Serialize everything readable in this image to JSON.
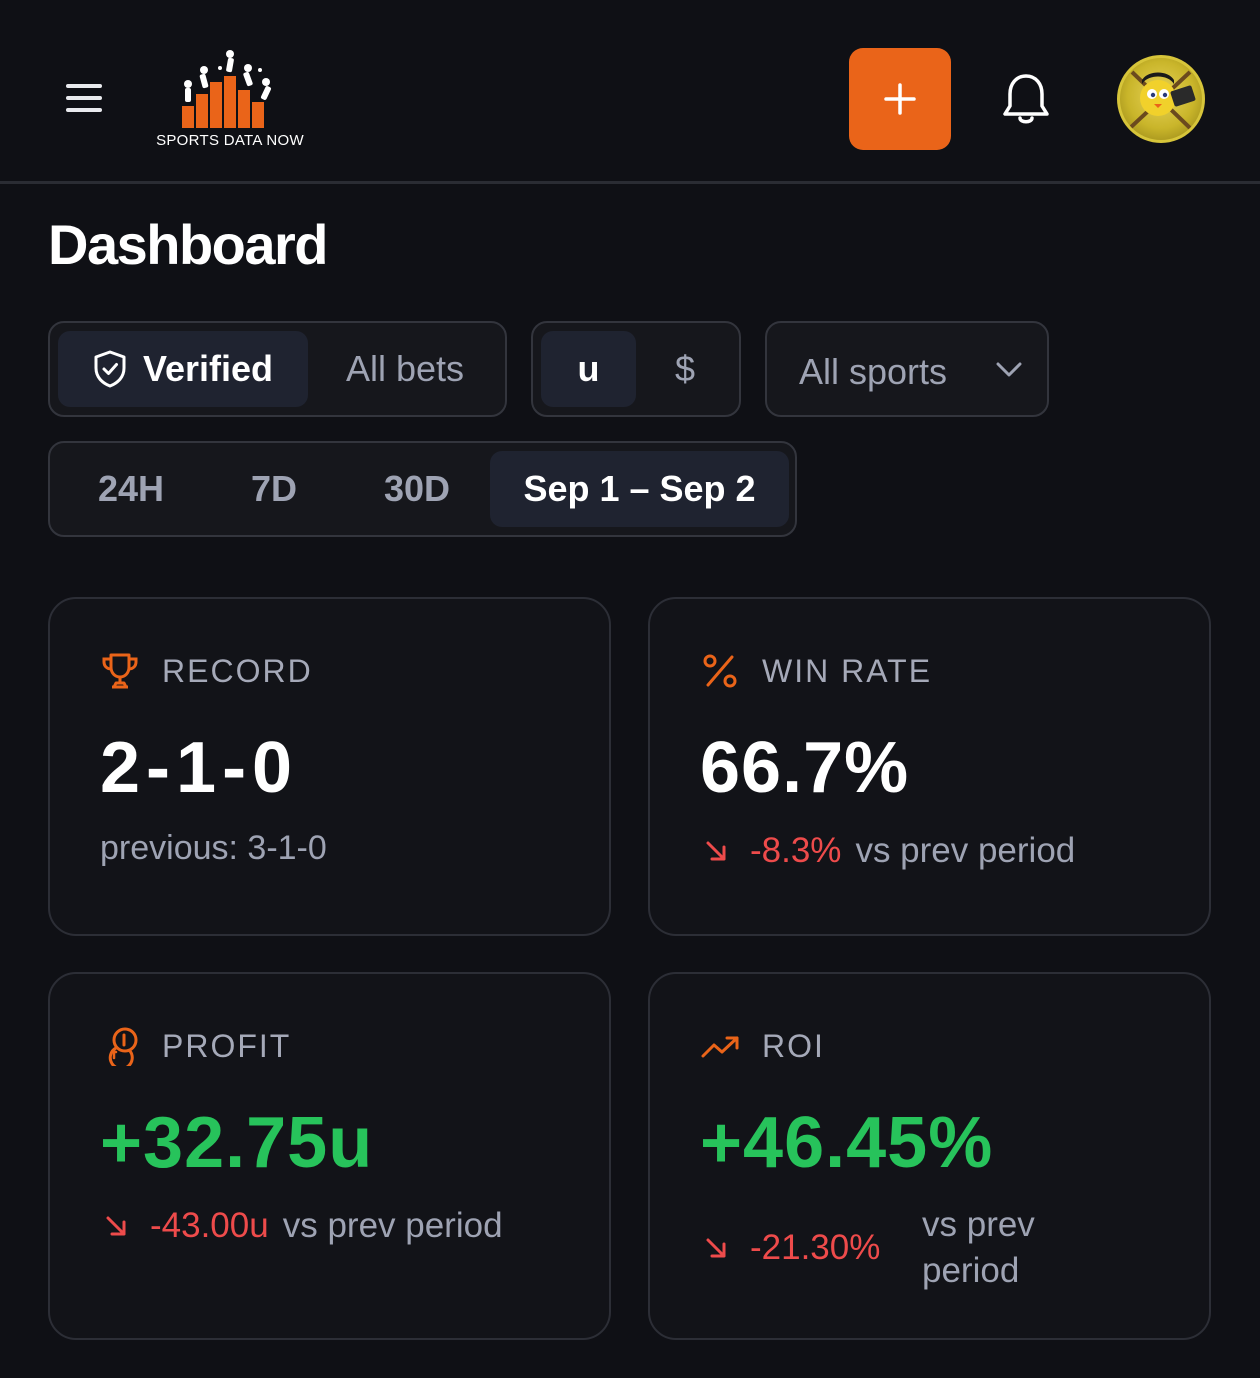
{
  "header": {
    "logo_text": "SPORTS DATA NOW",
    "icons": {
      "menu": "hamburger-icon",
      "add": "plus-icon",
      "bell": "bell-icon"
    },
    "accent": "#ea6419"
  },
  "page": {
    "title": "Dashboard"
  },
  "filters": {
    "bet_type": {
      "options": [
        "Verified",
        "All bets"
      ],
      "selected": "Verified"
    },
    "unit": {
      "options": [
        "u",
        "$"
      ],
      "selected": "u"
    },
    "sport": {
      "value": "All sports"
    },
    "period": {
      "options": [
        "24H",
        "7D",
        "30D",
        "Sep 1 – Sep 2"
      ],
      "selected": "Sep 1 – Sep 2"
    }
  },
  "cards": {
    "record": {
      "label": "RECORD",
      "value": "2-1-0",
      "previous": "previous: 3-1-0"
    },
    "win_rate": {
      "label": "WIN RATE",
      "value": "66.7%",
      "delta": "-8.3%",
      "vs": "vs prev period"
    },
    "profit": {
      "label": "PROFIT",
      "value": "+32.75u",
      "delta": "-43.00u",
      "vs": "vs prev period"
    },
    "roi": {
      "label": "ROI",
      "value": "+46.45%",
      "delta": "-21.30%",
      "vs_line1": "vs prev",
      "vs_line2": "period"
    }
  },
  "colors": {
    "positive": "#27c35b",
    "negative": "#ee4b4b",
    "icon_accent": "#ea6419"
  }
}
